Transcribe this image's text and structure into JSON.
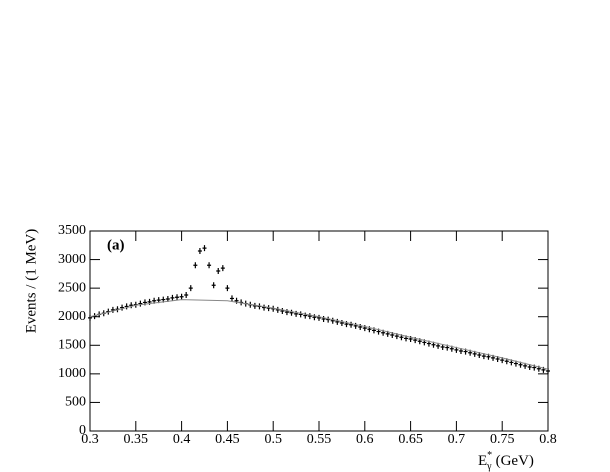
{
  "chart_data": {
    "type": "scatter",
    "annotation": "(a)",
    "ylabel": "Events / (1 MeV)",
    "xlabel": {
      "symbol": "E",
      "superscript": "*",
      "subscript": "γ",
      "unit": "(GeV)"
    },
    "xlim": [
      0.3,
      0.8
    ],
    "ylim": [
      0,
      3500
    ],
    "xticks": [
      0.3,
      0.35,
      0.4,
      0.45,
      0.5,
      0.55,
      0.6,
      0.65,
      0.7,
      0.75,
      0.8
    ],
    "yticks": [
      0,
      500,
      1000,
      1500,
      2000,
      2500,
      3000,
      3500
    ],
    "series": [
      {
        "type": "scatter",
        "color": "#000000",
        "x": [
          0.3,
          0.305,
          0.31,
          0.315,
          0.32,
          0.325,
          0.33,
          0.335,
          0.34,
          0.345,
          0.35,
          0.355,
          0.36,
          0.365,
          0.37,
          0.375,
          0.38,
          0.385,
          0.39,
          0.395,
          0.4,
          0.405,
          0.41,
          0.415,
          0.42,
          0.425,
          0.43,
          0.435,
          0.44,
          0.445,
          0.45,
          0.455,
          0.46,
          0.465,
          0.47,
          0.475,
          0.48,
          0.485,
          0.49,
          0.495,
          0.5,
          0.505,
          0.51,
          0.515,
          0.52,
          0.525,
          0.53,
          0.535,
          0.54,
          0.545,
          0.55,
          0.555,
          0.56,
          0.565,
          0.57,
          0.575,
          0.58,
          0.585,
          0.59,
          0.595,
          0.6,
          0.605,
          0.61,
          0.615,
          0.62,
          0.625,
          0.63,
          0.635,
          0.64,
          0.645,
          0.65,
          0.655,
          0.66,
          0.665,
          0.67,
          0.675,
          0.68,
          0.685,
          0.69,
          0.695,
          0.7,
          0.705,
          0.71,
          0.715,
          0.72,
          0.725,
          0.73,
          0.735,
          0.74,
          0.745,
          0.75,
          0.755,
          0.76,
          0.765,
          0.77,
          0.775,
          0.78,
          0.785,
          0.79,
          0.795,
          0.8
        ],
        "values": [
          1980,
          2010,
          2040,
          2060,
          2090,
          2120,
          2130,
          2160,
          2180,
          2200,
          2210,
          2230,
          2250,
          2260,
          2280,
          2290,
          2300,
          2310,
          2330,
          2340,
          2350,
          2380,
          2500,
          2900,
          3150,
          3200,
          2900,
          2550,
          2800,
          2850,
          2500,
          2320,
          2280,
          2250,
          2230,
          2210,
          2190,
          2180,
          2160,
          2150,
          2140,
          2120,
          2100,
          2080,
          2070,
          2050,
          2040,
          2020,
          2010,
          1990,
          1980,
          1960,
          1950,
          1930,
          1910,
          1890,
          1870,
          1860,
          1840,
          1820,
          1800,
          1780,
          1760,
          1740,
          1720,
          1700,
          1680,
          1660,
          1640,
          1620,
          1610,
          1590,
          1570,
          1550,
          1530,
          1510,
          1490,
          1470,
          1460,
          1440,
          1420,
          1400,
          1390,
          1370,
          1350,
          1330,
          1310,
          1300,
          1280,
          1260,
          1240,
          1220,
          1200,
          1180,
          1160,
          1140,
          1120,
          1110,
          1090,
          1070,
          1050
        ]
      },
      {
        "type": "line",
        "color": "#888888",
        "x": [
          0.3,
          0.35,
          0.4,
          0.45,
          0.5,
          0.55,
          0.6,
          0.65,
          0.7,
          0.75,
          0.8
        ],
        "values": [
          2000,
          2200,
          2300,
          2280,
          2150,
          2000,
          1830,
          1640,
          1460,
          1280,
          1080
        ]
      }
    ]
  }
}
